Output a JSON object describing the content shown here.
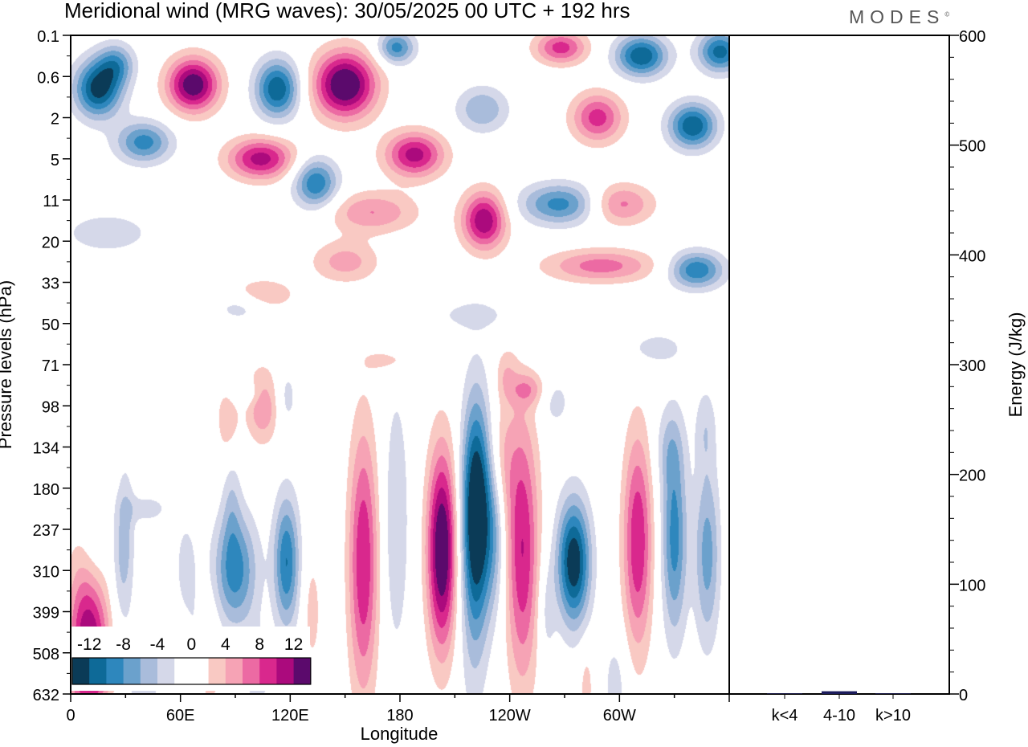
{
  "header": {
    "title": "Meridional wind (MRG waves):  30/05/2025  00 UTC  + 192 hrs",
    "logo": "MODES",
    "logo_mark": "©"
  },
  "colors": {
    "neg": [
      "#0b3b57",
      "#0e6a98",
      "#2e87bd",
      "#6ba1cc",
      "#a9bcdb",
      "#d5d8e9"
    ],
    "pos": [
      "#f9c9c3",
      "#f6a3b5",
      "#ec6aa3",
      "#d9288d",
      "#ab0a7d",
      "#5b0a6c"
    ],
    "bar": "#1b1b5b"
  },
  "chart_data": [
    {
      "type": "heatmap",
      "title": "Meridional wind (MRG waves):  30/05/2025  00 UTC  + 192 hrs",
      "xlabel": "Longitude",
      "ylabel": "Pressure levels (hPa)",
      "x_ticks": [
        "0",
        "60E",
        "120E",
        "180",
        "120W",
        "60W"
      ],
      "y_ticks": [
        "0.1",
        "0.6",
        "2",
        "5",
        "11",
        "20",
        "33",
        "50",
        "71",
        "98",
        "134",
        "180",
        "237",
        "310",
        "399",
        "508",
        "632"
      ],
      "xlim": [
        0,
        360
      ],
      "colorbar": {
        "labels": [
          "-12",
          "-8",
          "-4",
          "0",
          "4",
          "8",
          "12"
        ],
        "levels": [
          -14,
          -12,
          -10,
          -8,
          -6,
          -4,
          -2,
          2,
          4,
          6,
          8,
          10,
          12,
          14
        ]
      },
      "blobs": [
        {
          "lon": 15,
          "lev": 1.3,
          "amp": -13,
          "w": 13,
          "h": 0.7
        },
        {
          "lon": 25,
          "lev": 0.7,
          "amp": -7,
          "w": 10,
          "h": 0.5
        },
        {
          "lon": 67,
          "lev": 1.2,
          "amp": 14,
          "w": 14,
          "h": 0.65
        },
        {
          "lon": 113,
          "lev": 1.3,
          "amp": -12,
          "w": 12,
          "h": 0.7
        },
        {
          "lon": 150,
          "lev": 1.2,
          "amp": 15,
          "w": 17,
          "h": 0.8
        },
        {
          "lon": 178,
          "lev": 0.3,
          "amp": -9,
          "w": 10,
          "h": 0.4
        },
        {
          "lon": 268,
          "lev": 0.3,
          "amp": 9,
          "w": 14,
          "h": 0.4
        },
        {
          "lon": 312,
          "lev": 0.5,
          "amp": -12,
          "w": 14,
          "h": 0.5
        },
        {
          "lon": 355,
          "lev": 0.4,
          "amp": -11,
          "w": 12,
          "h": 0.5
        },
        {
          "lon": 225,
          "lev": 1.8,
          "amp": -6,
          "w": 14,
          "h": 0.55
        },
        {
          "lon": 288,
          "lev": 2.0,
          "amp": 9,
          "w": 14,
          "h": 0.6
        },
        {
          "lon": 340,
          "lev": 2.2,
          "amp": -12,
          "w": 13,
          "h": 0.55
        },
        {
          "lon": 40,
          "lev": 2.6,
          "amp": -9,
          "w": 15,
          "h": 0.5
        },
        {
          "lon": 104,
          "lev": 3.0,
          "amp": 11,
          "w": 18,
          "h": 0.5
        },
        {
          "lon": 188,
          "lev": 2.9,
          "amp": 11,
          "w": 16,
          "h": 0.55
        },
        {
          "lon": 134,
          "lev": 3.6,
          "amp": -10,
          "w": 12,
          "h": 0.6
        },
        {
          "lon": 165,
          "lev": 4.3,
          "amp": 6,
          "w": 24,
          "h": 0.5
        },
        {
          "lon": 226,
          "lev": 4.5,
          "amp": 12,
          "w": 12,
          "h": 0.7
        },
        {
          "lon": 268,
          "lev": 4.1,
          "amp": -9,
          "w": 22,
          "h": 0.5
        },
        {
          "lon": 300,
          "lev": 4.1,
          "amp": 7,
          "w": 18,
          "h": 0.5
        },
        {
          "lon": 20,
          "lev": 4.8,
          "amp": -4,
          "w": 22,
          "h": 0.45
        },
        {
          "lon": 290,
          "lev": 5.6,
          "amp": 7,
          "w": 30,
          "h": 0.4
        },
        {
          "lon": 342,
          "lev": 5.7,
          "amp": -10,
          "w": 15,
          "h": 0.45
        },
        {
          "lon": 105,
          "lev": 6.3,
          "amp": 4,
          "w": 18,
          "h": 0.4
        },
        {
          "lon": 150,
          "lev": 5.5,
          "amp": 5,
          "w": 18,
          "h": 0.5
        },
        {
          "lon": 93,
          "lev": 6.6,
          "amp": -3.5,
          "w": 14,
          "h": 0.35
        },
        {
          "lon": 220,
          "lev": 6.8,
          "amp": -3,
          "w": 20,
          "h": 0.35
        },
        {
          "lon": 320,
          "lev": 7.6,
          "amp": -3.5,
          "w": 14,
          "h": 0.35
        },
        {
          "lon": 175,
          "lev": 7.9,
          "amp": 3,
          "w": 14,
          "h": 0.3
        },
        {
          "lon": 250,
          "lev": 8.6,
          "amp": 4.5,
          "w": 10,
          "h": 0.4
        },
        {
          "lon": 95,
          "lev": 8.7,
          "amp": -3,
          "w": 10,
          "h": 0.3
        },
        {
          "lon": 42,
          "lev": 11.5,
          "amp": -3,
          "w": 12,
          "h": 0.35
        },
        {
          "lon": 10,
          "lev": 14.8,
          "amp": 13,
          "w": 11,
          "h": 2.2
        },
        {
          "lon": 220,
          "lev": 13.8,
          "amp": -3,
          "w": 8,
          "h": 3.5
        },
        {
          "lon": 28,
          "lev": 13.0,
          "amp": -3.5,
          "w": 6,
          "h": 1.6
        },
        {
          "lon": 63,
          "lev": 12.9,
          "amp": -3,
          "w": 6,
          "h": 1.2
        },
        {
          "lon": 70,
          "lev": 15.0,
          "amp": -3,
          "w": 6,
          "h": 1.4
        },
        {
          "lon": 105,
          "lev": 9.0,
          "amp": 6,
          "w": 9,
          "h": 0.9
        },
        {
          "lon": 88,
          "lev": 11.3,
          "amp": -3,
          "w": 5,
          "h": 1.4
        },
        {
          "lon": 86,
          "lev": 9.3,
          "amp": 4,
          "w": 6,
          "h": 1.0
        },
        {
          "lon": 118,
          "lev": 8.8,
          "amp": -3,
          "w": 6,
          "h": 0.8
        },
        {
          "lon": 238,
          "lev": 8.2,
          "amp": 3,
          "w": 6,
          "h": 0.6
        },
        {
          "lon": 265,
          "lev": 8.9,
          "amp": -3,
          "w": 8,
          "h": 0.6
        },
        {
          "lon": 362,
          "lev": 8.2,
          "amp": 3,
          "w": 4,
          "h": 0.5
        },
        {
          "lon": 13,
          "lev": 12.6,
          "amp": -3.5,
          "w": 8,
          "h": 1.4
        },
        {
          "lon": 30,
          "lev": 11.8,
          "amp": -3,
          "w": 5,
          "h": 1.5
        },
        {
          "lon": 90,
          "lev": 13.0,
          "amp": -9,
          "w": 12,
          "h": 1.4
        },
        {
          "lon": 118,
          "lev": 12.8,
          "amp": -10,
          "w": 7,
          "h": 1.6
        },
        {
          "lon": 40,
          "lev": 16.0,
          "amp": -3.5,
          "w": 9,
          "h": 1.6
        },
        {
          "lon": 75,
          "lev": 15.3,
          "amp": 4,
          "w": 6,
          "h": 1.6
        },
        {
          "lon": 102,
          "lev": 15.6,
          "amp": -3,
          "w": 7,
          "h": 1.2
        },
        {
          "lon": 132,
          "lev": 14.0,
          "amp": 3,
          "w": 5,
          "h": 1.4
        },
        {
          "lon": 160,
          "lev": 12.8,
          "amp": 10,
          "w": 8,
          "h": 3.2
        },
        {
          "lon": 178,
          "lev": 11.8,
          "amp": -4,
          "w": 7,
          "h": 3.2
        },
        {
          "lon": 203,
          "lev": 12.5,
          "amp": 15,
          "w": 8,
          "h": 2.4
        },
        {
          "lon": 222,
          "lev": 11.5,
          "amp": -15,
          "w": 8,
          "h": 2.6
        },
        {
          "lon": 232,
          "lev": 12.0,
          "amp": -5,
          "w": 6,
          "h": 2.0
        },
        {
          "lon": 247,
          "lev": 12.5,
          "amp": 10,
          "w": 9,
          "h": 3.2
        },
        {
          "lon": 235,
          "lev": 10.3,
          "amp": 4,
          "w": 8,
          "h": 1.5
        },
        {
          "lon": 275,
          "lev": 12.8,
          "amp": -14,
          "w": 9,
          "h": 1.5
        },
        {
          "lon": 260,
          "lev": 14.0,
          "amp": -3,
          "w": 5,
          "h": 1.3
        },
        {
          "lon": 298,
          "lev": 15.8,
          "amp": -3,
          "w": 7,
          "h": 1.3
        },
        {
          "lon": 282,
          "lev": 15.8,
          "amp": 3,
          "w": 4,
          "h": 1.0
        },
        {
          "lon": 310,
          "lev": 12.3,
          "amp": 10,
          "w": 8,
          "h": 2.6
        },
        {
          "lon": 330,
          "lev": 12.2,
          "amp": -9,
          "w": 7,
          "h": 2.4
        },
        {
          "lon": 348,
          "lev": 12.6,
          "amp": -7,
          "w": 7,
          "h": 2.2
        },
        {
          "lon": 327,
          "lev": 10.0,
          "amp": -3,
          "w": 8,
          "h": 1.0
        },
        {
          "lon": 347,
          "lev": 9.5,
          "amp": -3,
          "w": 6,
          "h": 1.0
        },
        {
          "lon": 363,
          "lev": 11.8,
          "amp": 3,
          "w": 4,
          "h": 1.6
        }
      ]
    },
    {
      "type": "bar",
      "ylabel": "Energy (J/kg)",
      "categories": [
        "k<4",
        "4-10",
        "k>10"
      ],
      "values": [
        0.5,
        2.5,
        0.5
      ],
      "ylim": [
        0,
        600
      ],
      "y_ticks": [
        "0",
        "100",
        "200",
        "300",
        "400",
        "500",
        "600"
      ]
    }
  ]
}
